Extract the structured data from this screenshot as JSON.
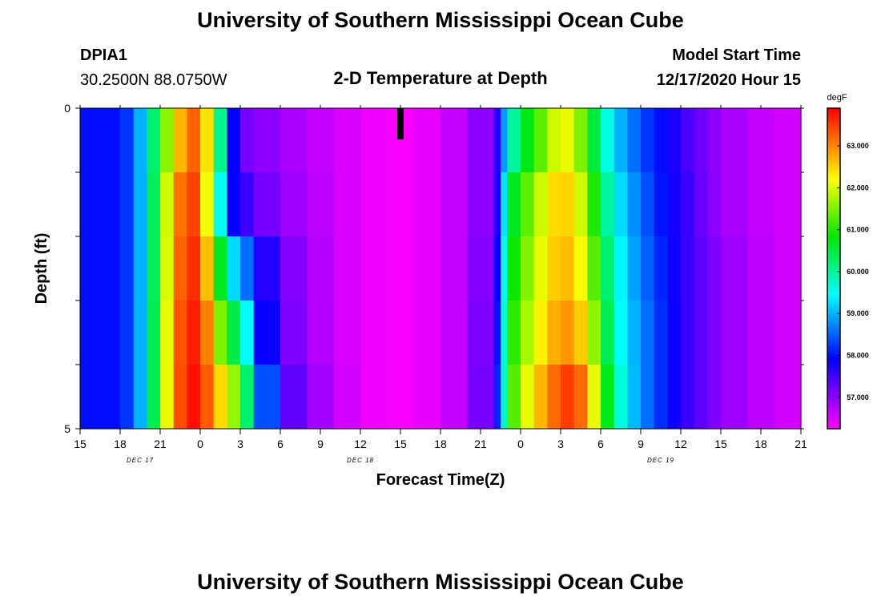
{
  "header": {
    "title": "University of Southern Mississippi Ocean Cube",
    "station_id": "DPIA1",
    "station_coords": "30.2500N 88.0750W",
    "plot_title": "2-D Temperature at Depth",
    "start_label": "Model Start Time",
    "start_value": "12/17/2020 Hour 15"
  },
  "footer": {
    "title": "University of Southern Mississippi Ocean Cube"
  },
  "chart_data": {
    "type": "heatmap",
    "title": "2-D Temperature at Depth",
    "xlabel": "Forecast Time(Z)",
    "ylabel": "Depth (ft)",
    "x_tick_labels": [
      "15",
      "18",
      "21",
      "0",
      "3",
      "6",
      "9",
      "12",
      "15",
      "18",
      "21",
      "0",
      "3",
      "6",
      "9",
      "12",
      "15",
      "18",
      "21"
    ],
    "date_labels": [
      {
        "label": "DEC 17",
        "tick_index": 1.5
      },
      {
        "label": "DEC 18",
        "tick_index": 7
      },
      {
        "label": "DEC 19",
        "tick_index": 14.5
      }
    ],
    "y_tick_labels": [
      "0",
      "5"
    ],
    "y_range": [
      0,
      5
    ],
    "x_hours_range": [
      0,
      54
    ],
    "current_time_marker_hour": 24,
    "colorbar": {
      "unit": "degF",
      "range": [
        56.25,
        63.9
      ],
      "tick_values": [
        57,
        58,
        59,
        60,
        61,
        62,
        63
      ],
      "tick_labels": [
        "57.000",
        "58.000",
        "59.000",
        "60.000",
        "61.000",
        "62.000",
        "63.000"
      ]
    },
    "depth_rows": [
      0.5,
      1.5,
      2.5,
      3.5,
      4.5
    ],
    "time_keyframes_hours": [
      0,
      3,
      4,
      5,
      6,
      7,
      8,
      9,
      10,
      11,
      12,
      13,
      15,
      17,
      19,
      21,
      23,
      25,
      27,
      29,
      31,
      31.5,
      32,
      33,
      34,
      35,
      36,
      37,
      38,
      39,
      40,
      41,
      42,
      43,
      44,
      45,
      46,
      47,
      48,
      50,
      52,
      54
    ],
    "temperature_degF": [
      [
        58.0,
        58.0,
        58.5,
        59.5,
        61.0,
        62.2,
        63.2,
        63.3,
        61.5,
        58.6,
        57.2,
        57.1,
        56.9,
        56.7,
        56.6,
        56.4,
        56.3,
        56.3,
        56.5,
        56.8,
        57.2,
        58.2,
        59.5,
        60.5,
        61.0,
        61.7,
        62.2,
        62.0,
        61.0,
        60.0,
        59.2,
        58.8,
        58.4,
        58.1,
        57.9,
        57.6,
        57.3,
        57.1,
        56.9,
        56.7,
        56.6,
        56.5
      ],
      [
        58.0,
        58.0,
        58.5,
        59.5,
        61.2,
        62.7,
        63.6,
        63.3,
        61.0,
        58.0,
        57.8,
        57.3,
        57.0,
        56.8,
        56.6,
        56.4,
        56.3,
        56.3,
        56.5,
        56.8,
        57.2,
        58.4,
        60.2,
        61.1,
        61.6,
        62.3,
        62.6,
        62.4,
        61.5,
        60.5,
        59.5,
        59.0,
        58.6,
        58.2,
        57.9,
        57.7,
        57.4,
        57.1,
        56.9,
        56.7,
        56.6,
        56.5
      ],
      [
        58.0,
        58.0,
        58.5,
        59.5,
        61.2,
        62.8,
        63.7,
        63.5,
        61.8,
        59.5,
        59.0,
        58.2,
        57.2,
        56.9,
        56.6,
        56.4,
        56.3,
        56.3,
        56.5,
        56.8,
        57.3,
        58.6,
        60.5,
        61.3,
        61.8,
        62.4,
        62.7,
        62.6,
        61.8,
        60.8,
        59.7,
        59.1,
        58.7,
        58.3,
        58.0,
        57.7,
        57.4,
        57.2,
        57.0,
        56.8,
        56.6,
        56.5
      ],
      [
        58.0,
        58.0,
        58.5,
        59.5,
        61.3,
        62.9,
        63.8,
        63.6,
        62.5,
        60.5,
        60.4,
        58.5,
        57.3,
        56.9,
        56.6,
        56.4,
        56.3,
        56.3,
        56.5,
        56.8,
        57.4,
        58.7,
        60.7,
        61.5,
        62.0,
        62.6,
        62.9,
        62.9,
        62.2,
        61.0,
        59.8,
        59.2,
        58.8,
        58.4,
        58.0,
        57.7,
        57.4,
        57.2,
        57.0,
        56.8,
        56.6,
        56.5
      ],
      [
        58.0,
        58.0,
        58.5,
        59.5,
        61.3,
        62.9,
        63.9,
        63.7,
        62.9,
        62.0,
        61.3,
        59.2,
        57.6,
        57.0,
        56.7,
        56.4,
        56.3,
        56.3,
        56.5,
        56.8,
        57.5,
        58.8,
        60.8,
        61.8,
        62.4,
        63.0,
        63.4,
        63.6,
        62.8,
        61.4,
        60.0,
        59.3,
        58.8,
        58.4,
        58.0,
        57.7,
        57.4,
        57.2,
        57.0,
        56.8,
        56.6,
        56.5
      ]
    ]
  }
}
